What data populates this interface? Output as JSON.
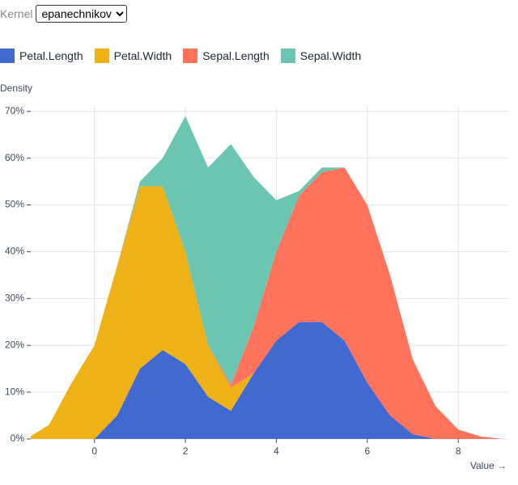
{
  "controls": {
    "kernel_label": "Kernel",
    "kernel": "epanechnikov"
  },
  "chart_data": {
    "type": "area",
    "stacked": true,
    "y_label": "Density",
    "x_label": "Value →",
    "x": [
      -1.5,
      -1,
      -0.5,
      0,
      0.5,
      1,
      1.5,
      2,
      2.5,
      3,
      3.5,
      4,
      4.5,
      5,
      5.5,
      6,
      6.5,
      7,
      7.5,
      8,
      8.5,
      9
    ],
    "series": [
      {
        "name": "Petal.Length",
        "color": "#4269d0",
        "values": [
          0,
          0,
          0,
          0,
          5,
          15,
          19,
          16,
          9,
          6,
          14,
          21,
          25,
          25,
          21,
          12,
          5,
          1,
          0,
          0,
          0,
          0
        ]
      },
      {
        "name": "Petal.Width",
        "color": "#efb118",
        "values": [
          0,
          3,
          12,
          20,
          32,
          39,
          35,
          24,
          11,
          5,
          0,
          0,
          0,
          0,
          0,
          0,
          0,
          0,
          0,
          0,
          0,
          0
        ]
      },
      {
        "name": "Sepal.Length",
        "color": "#ff725c",
        "values": [
          0,
          0,
          0,
          0,
          0,
          0,
          0,
          0,
          0,
          0.5,
          10,
          19,
          27,
          32,
          37,
          38,
          30,
          16,
          7,
          2,
          0.5,
          0
        ]
      },
      {
        "name": "Sepal.Width",
        "color": "#6cc5b0",
        "values": [
          0,
          0,
          0,
          0,
          0,
          1,
          6,
          29,
          38,
          51.5,
          32,
          11,
          1,
          1,
          0,
          0,
          0,
          0,
          0,
          0,
          0,
          0
        ]
      }
    ],
    "xlim": [
      -1.4,
      9.1
    ],
    "ylim": [
      0,
      71
    ],
    "xticks": [
      0,
      2,
      4,
      6,
      8
    ],
    "yticks": [
      {
        "value": 0,
        "label": "0%"
      },
      {
        "value": 10,
        "label": "10%"
      },
      {
        "value": 20,
        "label": "20%"
      },
      {
        "value": 30,
        "label": "30%"
      },
      {
        "value": 40,
        "label": "40%"
      },
      {
        "value": 50,
        "label": "50%"
      },
      {
        "value": 60,
        "label": "60%"
      },
      {
        "value": 70,
        "label": "70%"
      }
    ],
    "grid": true
  }
}
